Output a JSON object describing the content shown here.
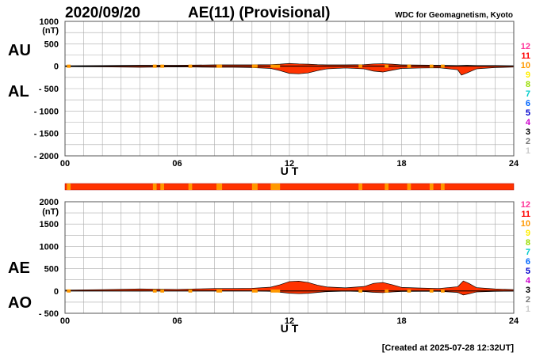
{
  "header": {
    "date": "2020/09/20",
    "title": "AE(11) (Provisional)",
    "source": "WDC for Geomagnetism, Kyoto"
  },
  "footer": {
    "created": "[Created at 2025-07-28 12:32UT]"
  },
  "colors": {
    "fill_main": "#ff3300",
    "fill_alt": "#ff9900",
    "grid": "#aaaaaa",
    "strip_main": "#ff3300",
    "strip_alt": "#ff9900"
  },
  "station_scale": [
    {
      "label": "12",
      "color": "#ff3399"
    },
    {
      "label": "11",
      "color": "#ff0000"
    },
    {
      "label": "10",
      "color": "#ff9900"
    },
    {
      "label": "9",
      "color": "#ffee00"
    },
    {
      "label": "8",
      "color": "#99dd00"
    },
    {
      "label": "7",
      "color": "#00cccc"
    },
    {
      "label": "6",
      "color": "#0066ff"
    },
    {
      "label": "5",
      "color": "#0000cc"
    },
    {
      "label": "4",
      "color": "#cc00cc"
    },
    {
      "label": "3",
      "color": "#000000"
    },
    {
      "label": "2",
      "color": "#777777"
    },
    {
      "label": "1",
      "color": "#cccccc"
    }
  ],
  "station_strip": {
    "alt_segments": [
      [
        0.1,
        0.3
      ],
      [
        4.7,
        4.9
      ],
      [
        5.1,
        5.3
      ],
      [
        6.6,
        6.8
      ],
      [
        8.1,
        8.4
      ],
      [
        10.0,
        10.3
      ],
      [
        11.0,
        11.5
      ],
      [
        15.7,
        15.9
      ],
      [
        17.1,
        17.3
      ],
      [
        18.3,
        18.5
      ],
      [
        19.5,
        19.7
      ],
      [
        20.1,
        20.3
      ]
    ]
  },
  "chart_data": [
    {
      "type": "area",
      "upper_label": "AU",
      "lower_label": "AL",
      "units": "(nT)",
      "xlabel": "U T",
      "xlim": [
        0,
        24
      ],
      "ylim": [
        -2000,
        1000
      ],
      "x_ticks": [
        "00",
        "06",
        "12",
        "18",
        "24"
      ],
      "y_ticks": [
        "1000",
        "500",
        "0",
        "- 500",
        "- 1000",
        "- 1500",
        "- 2000"
      ],
      "y_tick_values": [
        1000,
        500,
        0,
        -500,
        -1000,
        -1500,
        -2000
      ],
      "series": [
        {
          "name": "AU",
          "x": [
            0,
            2,
            4,
            6,
            7,
            8,
            9,
            10,
            11,
            11.5,
            12,
            12.5,
            13,
            13.5,
            14,
            15,
            16,
            16.5,
            17,
            17.5,
            18,
            19,
            20,
            21,
            21.5,
            22,
            23,
            24
          ],
          "values": [
            10,
            15,
            20,
            20,
            25,
            30,
            30,
            30,
            35,
            45,
            60,
            50,
            45,
            35,
            30,
            30,
            35,
            50,
            55,
            45,
            30,
            25,
            20,
            15,
            20,
            15,
            15,
            10
          ]
        },
        {
          "name": "AL",
          "x": [
            0,
            2,
            4,
            6,
            7,
            8,
            9,
            10,
            11,
            11.5,
            12,
            12.5,
            13,
            13.5,
            14,
            15,
            16,
            16.5,
            17,
            17.5,
            18,
            19,
            20,
            21,
            21.2,
            21.5,
            22,
            23,
            24
          ],
          "values": [
            -10,
            -15,
            -25,
            -15,
            -20,
            -25,
            -25,
            -30,
            -50,
            -100,
            -160,
            -170,
            -150,
            -100,
            -60,
            -40,
            -60,
            -110,
            -130,
            -90,
            -50,
            -40,
            -35,
            -80,
            -200,
            -150,
            -60,
            -30,
            -20
          ]
        }
      ]
    },
    {
      "type": "area",
      "upper_label": "AE",
      "lower_label": "AO",
      "units": "(nT)",
      "xlabel": "U T",
      "xlim": [
        0,
        24
      ],
      "ylim": [
        -500,
        2000
      ],
      "x_ticks": [
        "00",
        "06",
        "12",
        "18",
        "24"
      ],
      "y_ticks": [
        "2000",
        "1500",
        "1000",
        "500",
        "0",
        "- 500"
      ],
      "y_tick_values": [
        2000,
        1500,
        1000,
        500,
        0,
        -500
      ],
      "series": [
        {
          "name": "AE",
          "x": [
            0,
            2,
            4,
            6,
            7,
            8,
            9,
            10,
            11,
            11.5,
            12,
            12.5,
            13,
            13.5,
            14,
            15,
            16,
            16.5,
            17,
            17.5,
            18,
            19,
            20,
            21,
            21.3,
            21.6,
            22,
            23,
            24
          ],
          "values": [
            20,
            30,
            45,
            35,
            45,
            55,
            55,
            60,
            85,
            140,
            210,
            220,
            190,
            130,
            90,
            70,
            100,
            170,
            190,
            140,
            80,
            65,
            55,
            95,
            225,
            170,
            75,
            45,
            30
          ]
        },
        {
          "name": "AO",
          "x": [
            0,
            2,
            4,
            6,
            7,
            8,
            9,
            10,
            11,
            11.5,
            12,
            12.5,
            13,
            13.5,
            14,
            15,
            16,
            16.5,
            17,
            17.5,
            18,
            19,
            20,
            21,
            21.3,
            21.6,
            22,
            23,
            24
          ],
          "values": [
            0,
            0,
            -2,
            2,
            2,
            2,
            2,
            0,
            -8,
            -28,
            -50,
            -60,
            -52,
            -32,
            -15,
            -5,
            -12,
            -30,
            -38,
            -22,
            -10,
            -8,
            -8,
            -32,
            -90,
            -65,
            -22,
            -8,
            -5
          ]
        }
      ]
    }
  ]
}
